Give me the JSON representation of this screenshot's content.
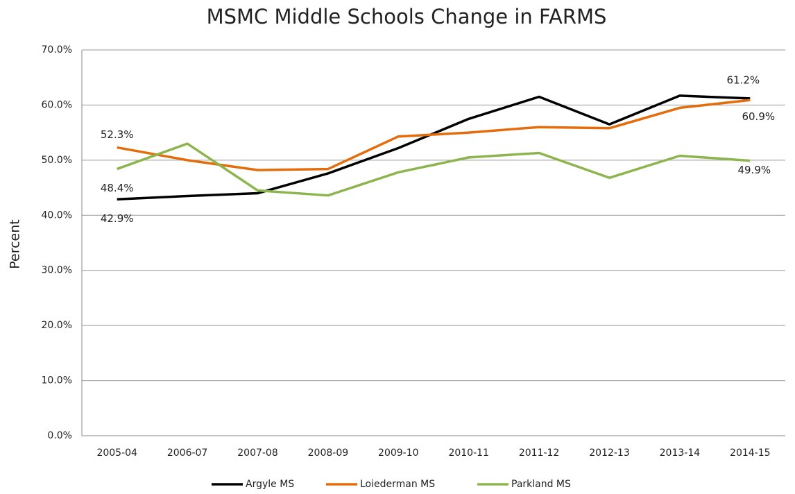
{
  "chart_data": {
    "type": "line",
    "title": "MSMC Middle Schools Change in FARMS",
    "y_label": "Percent",
    "categories": [
      "2005-04",
      "2006-07",
      "2007-08",
      "2008-09",
      "2009-10",
      "2010-11",
      "2011-12",
      "2012-13",
      "2013-14",
      "2014-15"
    ],
    "series": [
      {
        "name": "Argyle MS",
        "color": "#000000",
        "values": [
          42.9,
          43.5,
          44.0,
          47.6,
          52.2,
          57.5,
          61.5,
          56.5,
          61.7,
          61.2
        ],
        "value_labels": [
          "42.9%",
          null,
          null,
          null,
          null,
          null,
          null,
          null,
          null,
          "61.2%"
        ]
      },
      {
        "name": "Loiederman MS",
        "color": "#e46c0a",
        "values": [
          52.3,
          50.0,
          48.2,
          48.4,
          54.3,
          55.0,
          56.0,
          55.8,
          59.5,
          60.9
        ],
        "value_labels": [
          "52.3%",
          null,
          null,
          null,
          null,
          null,
          null,
          null,
          null,
          "60.9%"
        ]
      },
      {
        "name": "Parkland MS",
        "color": "#8db54d",
        "values": [
          48.4,
          53.0,
          44.5,
          43.6,
          47.8,
          50.5,
          51.3,
          46.8,
          50.8,
          49.9
        ],
        "value_labels": [
          "48.4%",
          null,
          null,
          null,
          null,
          null,
          null,
          null,
          null,
          "49.9%"
        ]
      }
    ],
    "ylim": [
      0,
      70
    ],
    "yticks": [
      {
        "value": 0,
        "label": "0.0%"
      },
      {
        "value": 10,
        "label": "10.0%"
      },
      {
        "value": 20,
        "label": "20.0%"
      },
      {
        "value": 30,
        "label": "30.0%"
      },
      {
        "value": 40,
        "label": "40.0%"
      },
      {
        "value": 50,
        "label": "50.0%"
      },
      {
        "value": 60,
        "label": "60.0%"
      },
      {
        "value": 70,
        "label": "70.0%"
      }
    ],
    "grid": true,
    "legend": "bottom"
  }
}
